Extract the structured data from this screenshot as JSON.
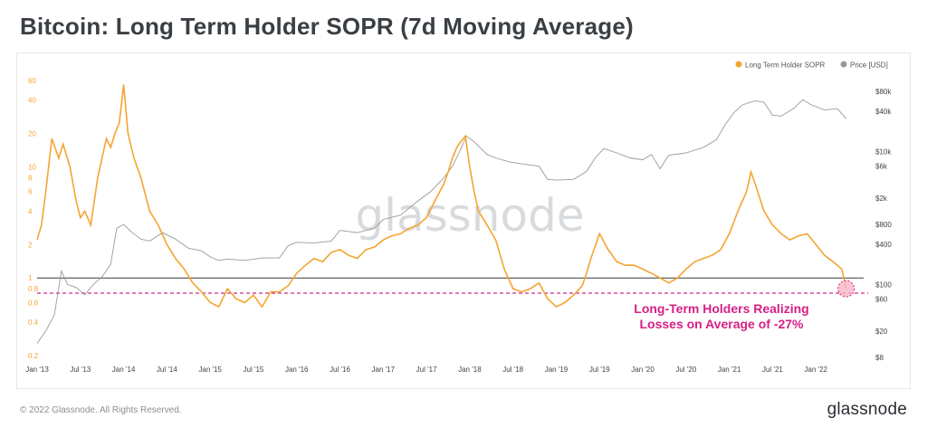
{
  "header": {
    "title": "Bitcoin: Long Term Holder SOPR (7d Moving Average)"
  },
  "footer": {
    "copyright": "© 2022 Glassnode. All Rights Reserved.",
    "brand": "glassnode"
  },
  "watermark": "glassnode",
  "annotation": {
    "line1": "Long-Term Holders Realizing",
    "line2": "Losses on Average of -27%"
  },
  "colors": {
    "sopr": "#f5a431",
    "price": "#9a9a9a",
    "baseline": "#3a3a3a",
    "threshold": "#cc2b8a",
    "annotation": "#d61f85"
  },
  "chart_data": {
    "type": "line",
    "title": "Bitcoin: Long Term Holder SOPR (7d Moving Average)",
    "legend_position": "top-right",
    "grid": false,
    "x_ticks": [
      "Jan '13",
      "Jul '13",
      "Jan '14",
      "Jul '14",
      "Jan '15",
      "Jul '15",
      "Jan '16",
      "Jul '16",
      "Jan '17",
      "Jul '17",
      "Jan '18",
      "Jul '18",
      "Jan '19",
      "Jul '19",
      "Jan '20",
      "Jul '20",
      "Jan '21",
      "Jul '21",
      "Jan '22"
    ],
    "y_left": {
      "scale": "log",
      "ticks": [
        "0.2",
        "0.4",
        "0.6",
        "0.8",
        "1",
        "2",
        "4",
        "6",
        "8",
        "10",
        "20",
        "40",
        "60"
      ]
    },
    "y_right": {
      "scale": "log",
      "ticks": [
        "$8",
        "$20",
        "$60",
        "$100",
        "$400",
        "$800",
        "$2k",
        "$6k",
        "$10k",
        "$40k",
        "$80k"
      ]
    },
    "reference_lines": [
      {
        "y": 1,
        "color": "#3a3a3a"
      },
      {
        "y": 0.73,
        "color": "#cc2b8a",
        "style": "dashed"
      }
    ],
    "series": [
      {
        "name": "Long Term Holder SOPR",
        "axis": "left",
        "color": "#f5a431",
        "x": [
          2013.0,
          2013.05,
          2013.1,
          2013.17,
          2013.25,
          2013.3,
          2013.38,
          2013.45,
          2013.5,
          2013.55,
          2013.62,
          2013.7,
          2013.75,
          2013.8,
          2013.85,
          2013.9,
          2013.95,
          2014.0,
          2014.05,
          2014.12,
          2014.2,
          2014.3,
          2014.4,
          2014.5,
          2014.6,
          2014.7,
          2014.8,
          2014.9,
          2015.0,
          2015.1,
          2015.2,
          2015.3,
          2015.4,
          2015.5,
          2015.6,
          2015.7,
          2015.8,
          2015.9,
          2016.0,
          2016.1,
          2016.2,
          2016.3,
          2016.4,
          2016.5,
          2016.6,
          2016.7,
          2016.8,
          2016.9,
          2017.0,
          2017.1,
          2017.2,
          2017.3,
          2017.4,
          2017.5,
          2017.6,
          2017.7,
          2017.75,
          2017.8,
          2017.85,
          2017.9,
          2017.95,
          2018.0,
          2018.05,
          2018.1,
          2018.2,
          2018.3,
          2018.4,
          2018.5,
          2018.6,
          2018.7,
          2018.8,
          2018.9,
          2019.0,
          2019.1,
          2019.2,
          2019.3,
          2019.35,
          2019.4,
          2019.5,
          2019.6,
          2019.7,
          2019.8,
          2019.9,
          2020.0,
          2020.1,
          2020.2,
          2020.3,
          2020.4,
          2020.5,
          2020.6,
          2020.7,
          2020.8,
          2020.9,
          2021.0,
          2021.1,
          2021.2,
          2021.25,
          2021.3,
          2021.4,
          2021.5,
          2021.6,
          2021.7,
          2021.8,
          2021.9,
          2022.0,
          2022.1,
          2022.2,
          2022.3,
          2022.35
        ],
        "values": [
          2.2,
          3.0,
          6.0,
          18.0,
          12.0,
          16.0,
          10.0,
          5.0,
          3.5,
          4.0,
          3.0,
          8.0,
          12.0,
          18.0,
          15.0,
          20.0,
          25.0,
          55.0,
          20.0,
          12.0,
          8.0,
          4.0,
          3.0,
          2.0,
          1.5,
          1.2,
          0.9,
          0.75,
          0.6,
          0.55,
          0.8,
          0.65,
          0.6,
          0.7,
          0.55,
          0.75,
          0.75,
          0.85,
          1.1,
          1.3,
          1.5,
          1.4,
          1.7,
          1.8,
          1.6,
          1.5,
          1.8,
          1.9,
          2.2,
          2.4,
          2.5,
          2.8,
          3.0,
          3.5,
          5.0,
          7.0,
          9.0,
          12.0,
          15.0,
          17.0,
          19.0,
          10.0,
          6.0,
          4.0,
          3.0,
          2.2,
          1.2,
          0.8,
          0.75,
          0.8,
          0.9,
          0.65,
          0.55,
          0.6,
          0.7,
          0.85,
          1.1,
          1.5,
          2.5,
          1.8,
          1.4,
          1.3,
          1.3,
          1.2,
          1.1,
          1.0,
          0.9,
          1.0,
          1.2,
          1.4,
          1.5,
          1.6,
          1.8,
          2.5,
          4.0,
          6.0,
          9.0,
          7.0,
          4.0,
          3.0,
          2.5,
          2.2,
          2.4,
          2.5,
          2.0,
          1.6,
          1.4,
          1.2,
          0.8
        ]
      },
      {
        "name": "Price [USD]",
        "axis": "right",
        "color": "#9a9a9a",
        "x": [
          2013.0,
          2013.1,
          2013.2,
          2013.28,
          2013.35,
          2013.45,
          2013.55,
          2013.65,
          2013.75,
          2013.85,
          2013.92,
          2014.0,
          2014.1,
          2014.2,
          2014.3,
          2014.45,
          2014.6,
          2014.75,
          2014.9,
          2015.0,
          2015.1,
          2015.2,
          2015.4,
          2015.6,
          2015.8,
          2015.9,
          2016.0,
          2016.2,
          2016.4,
          2016.5,
          2016.7,
          2016.9,
          2017.0,
          2017.2,
          2017.4,
          2017.55,
          2017.7,
          2017.8,
          2017.9,
          2017.96,
          2018.05,
          2018.2,
          2018.3,
          2018.45,
          2018.6,
          2018.8,
          2018.9,
          2019.0,
          2019.2,
          2019.35,
          2019.45,
          2019.55,
          2019.7,
          2019.85,
          2020.0,
          2020.1,
          2020.2,
          2020.3,
          2020.5,
          2020.7,
          2020.85,
          2020.95,
          2021.05,
          2021.15,
          2021.3,
          2021.4,
          2021.5,
          2021.6,
          2021.75,
          2021.85,
          2021.95,
          2022.1,
          2022.25,
          2022.35
        ],
        "values": [
          13,
          20,
          35,
          160,
          100,
          90,
          70,
          100,
          130,
          200,
          700,
          800,
          600,
          480,
          450,
          600,
          480,
          350,
          320,
          260,
          230,
          240,
          230,
          250,
          250,
          380,
          430,
          420,
          450,
          650,
          600,
          700,
          950,
          1100,
          1800,
          2500,
          4000,
          6000,
          11000,
          17000,
          14000,
          9000,
          8000,
          7000,
          6500,
          6000,
          3800,
          3700,
          3800,
          5000,
          8000,
          11000,
          9500,
          8000,
          7500,
          9000,
          5500,
          8800,
          9500,
          11500,
          15000,
          25000,
          38000,
          50000,
          58000,
          55000,
          35000,
          34000,
          45000,
          60000,
          50000,
          42000,
          44000,
          31000
        ]
      }
    ]
  }
}
